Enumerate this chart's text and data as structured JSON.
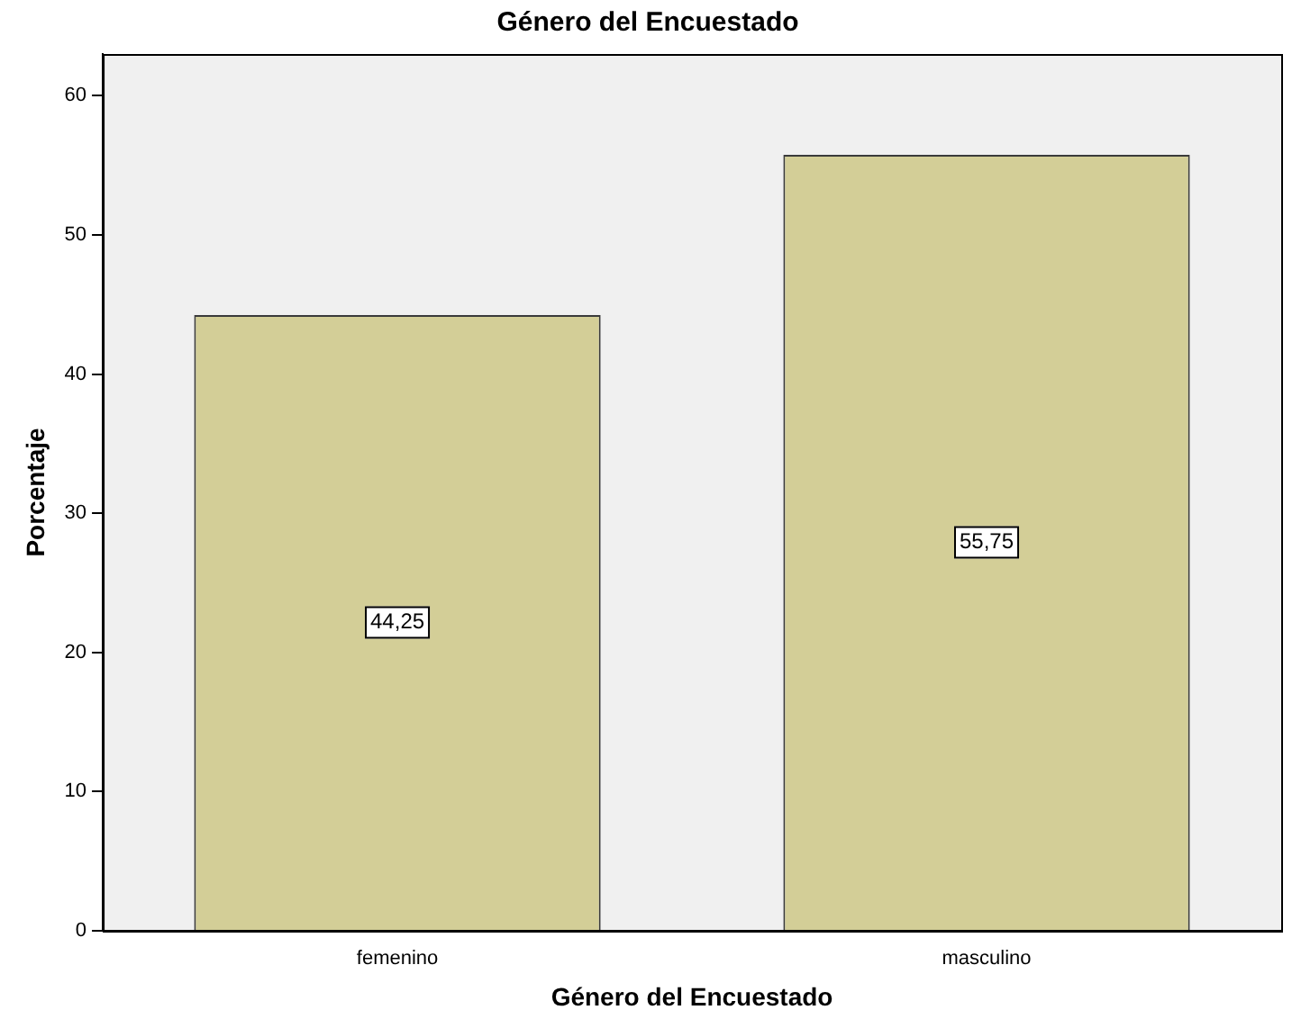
{
  "chart_data": {
    "type": "bar",
    "title": "Género del Encuestado",
    "xlabel": "Género del Encuestado",
    "ylabel": "Porcentaje",
    "categories": [
      "femenino",
      "masculino"
    ],
    "values": [
      44.25,
      55.75
    ],
    "value_labels": [
      "44,25",
      "55,75"
    ],
    "color": "#d3ce97",
    "ylim": [
      0,
      63
    ],
    "yticks": [
      0,
      10,
      20,
      30,
      40,
      50,
      60
    ],
    "grid": false,
    "legend": false
  }
}
